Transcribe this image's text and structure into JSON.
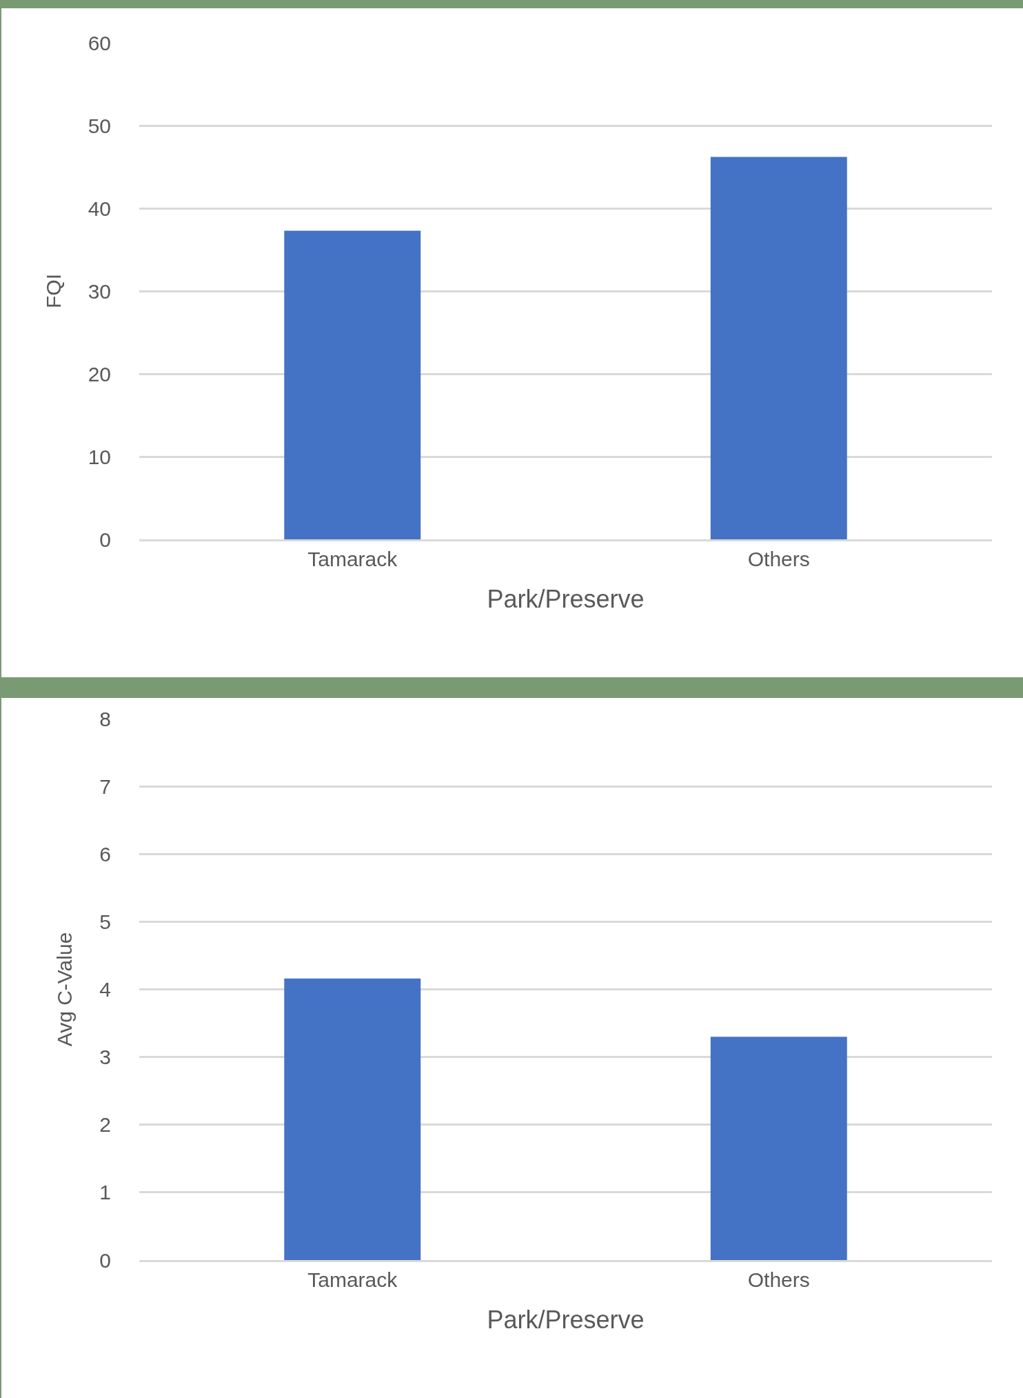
{
  "chart_data": [
    {
      "type": "bar",
      "xlabel": "Park/Preserve",
      "ylabel": "FQI",
      "categories": [
        "Tamarack",
        "Others"
      ],
      "values": [
        37.3,
        46.2
      ],
      "color": "#4472c4",
      "ylim": [
        0,
        60
      ],
      "yticks": [
        0,
        10,
        20,
        30,
        40,
        50,
        60
      ],
      "grid": "y"
    },
    {
      "type": "bar",
      "xlabel": "Park/Preserve",
      "ylabel": "Avg C-Value",
      "categories": [
        "Tamarack",
        "Others"
      ],
      "values": [
        4.16,
        3.3
      ],
      "color": "#4472c4",
      "ylim": [
        0,
        8
      ],
      "yticks": [
        0,
        1,
        2,
        3,
        4,
        5,
        6,
        7,
        8
      ],
      "grid": "y"
    }
  ]
}
